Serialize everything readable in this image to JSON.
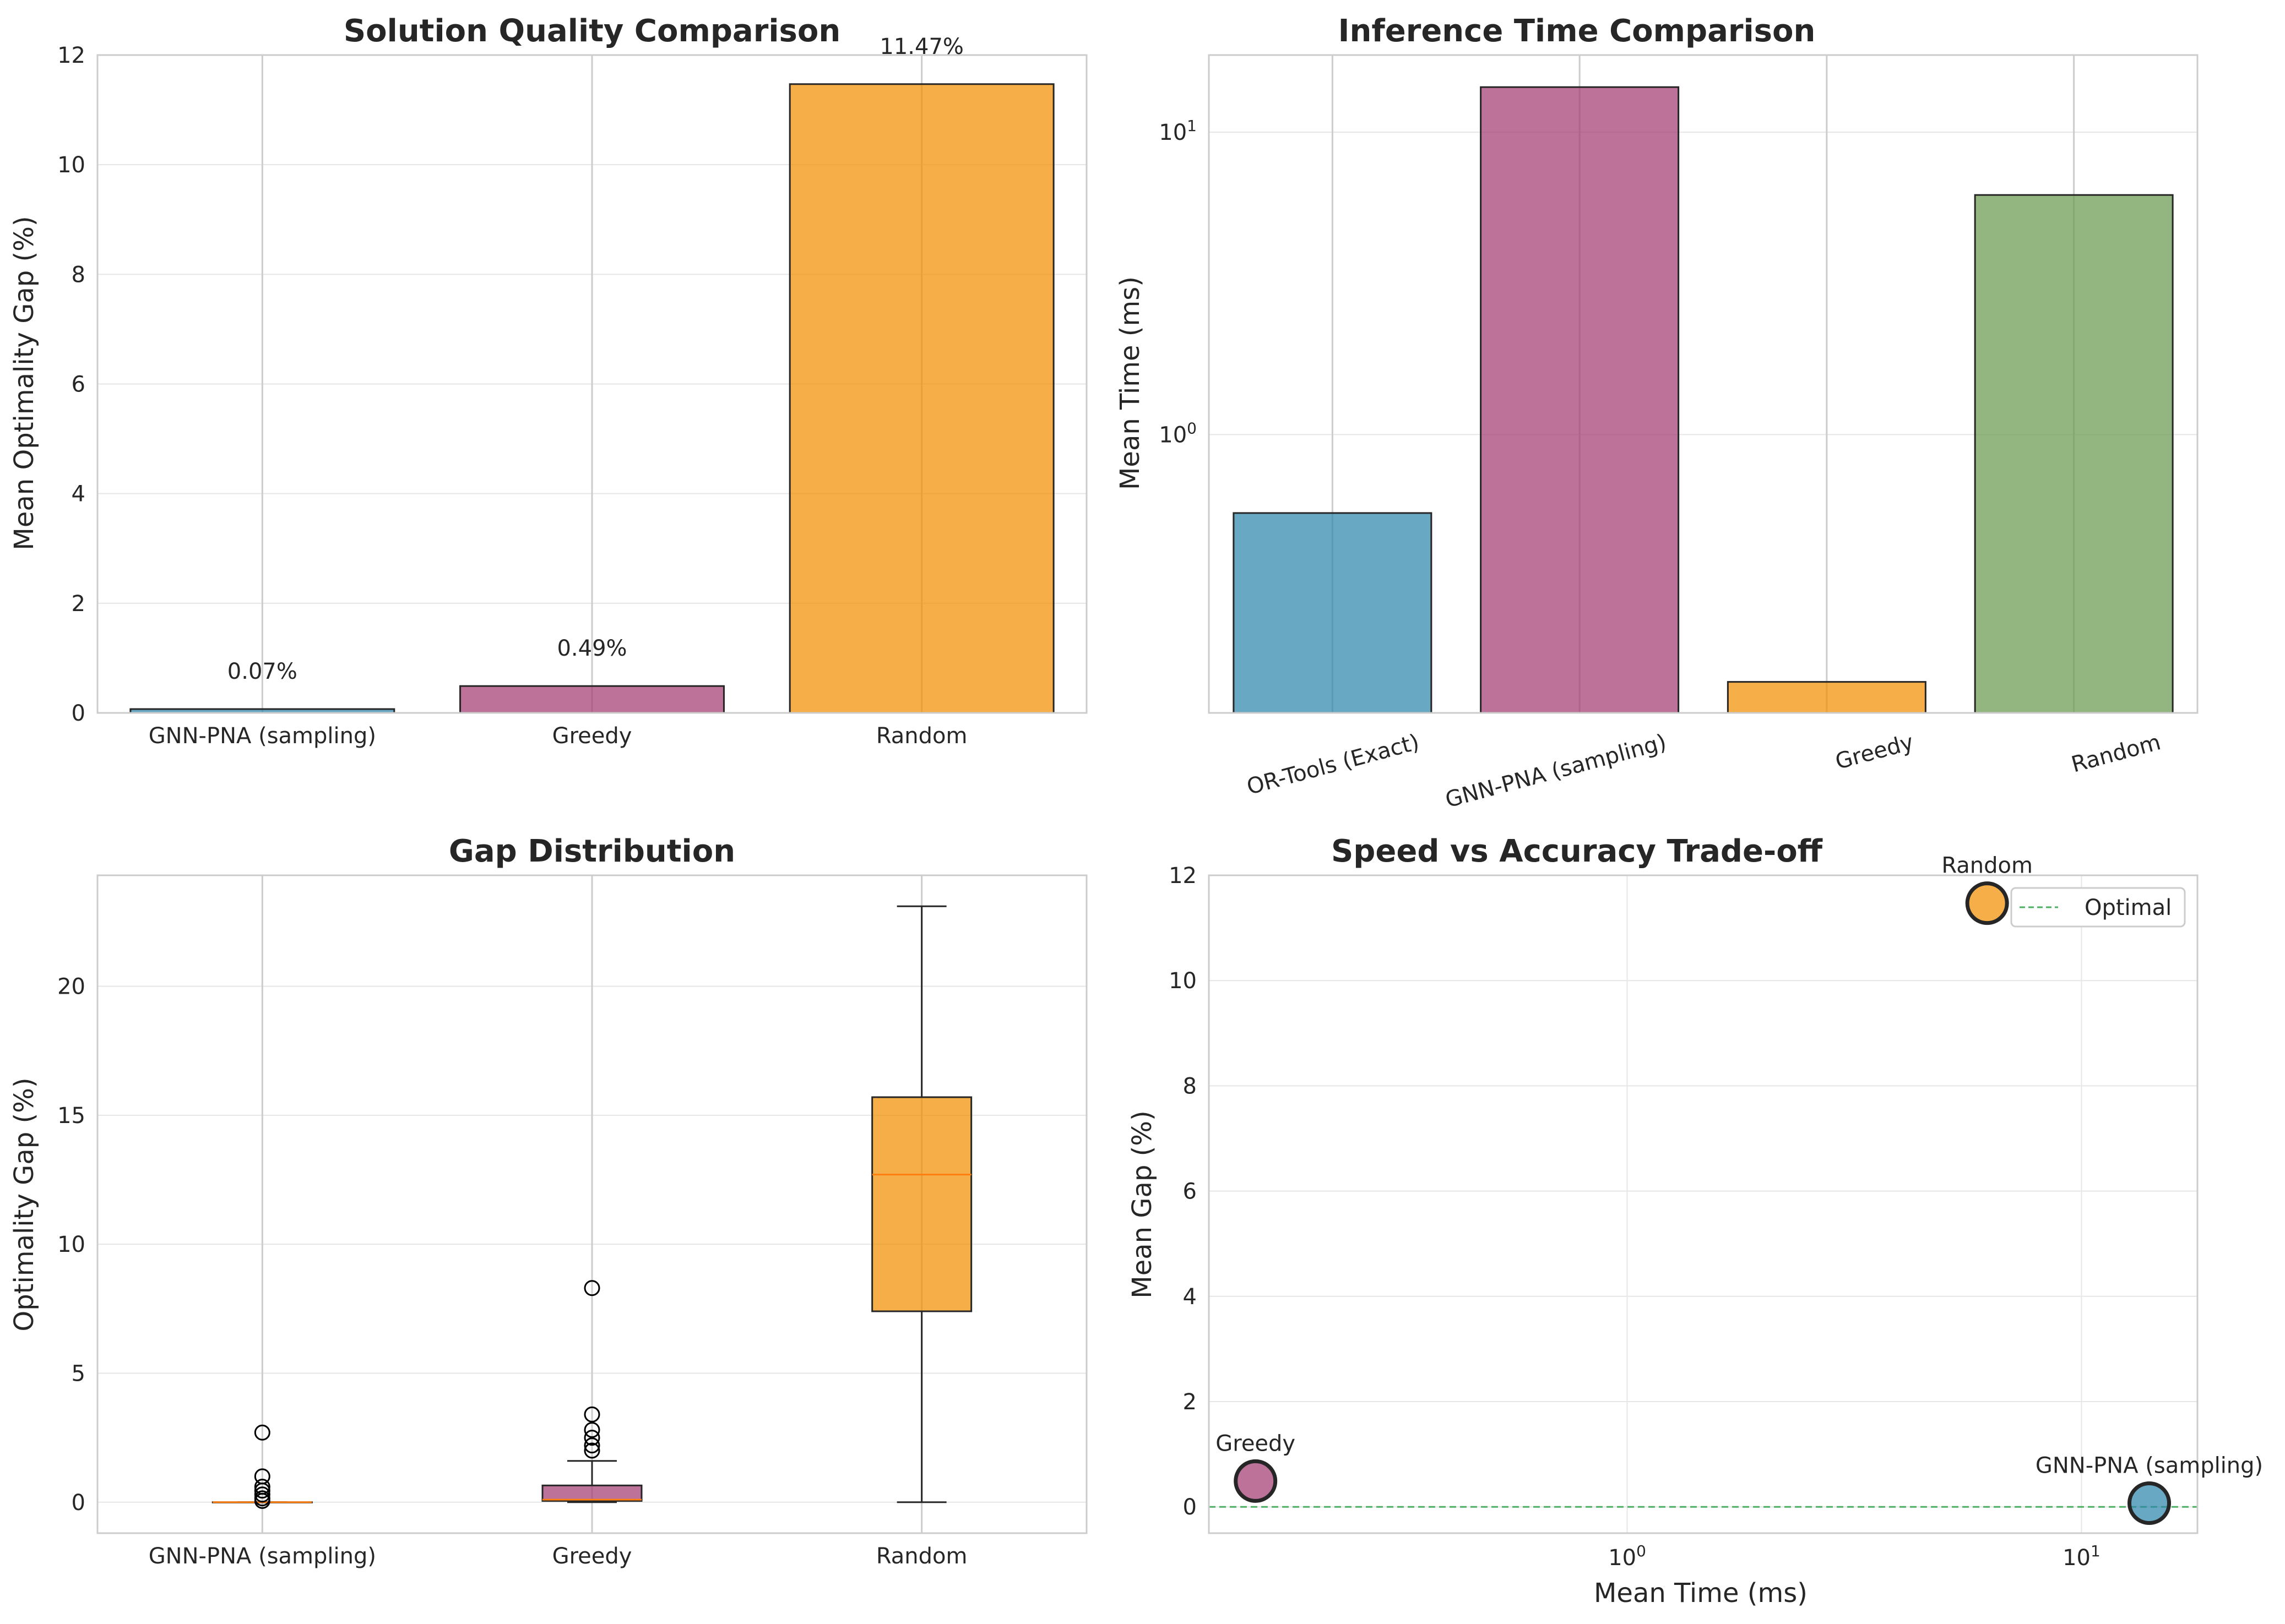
{
  "colors": {
    "blue": "#2E86AB",
    "purple": "#A23B72",
    "orange": "#F18F01",
    "green": "#6A994E",
    "median": "#ff7f0e",
    "optimal_line": "#4caf63",
    "edge": "#262626",
    "grid": "#e6e6e6",
    "spine": "#cccccc"
  },
  "chart_data": [
    {
      "type": "bar",
      "title": "Solution Quality Comparison",
      "xlabel": "",
      "ylabel": "Mean Optimality Gap (%)",
      "categories": [
        "GNN-PNA (sampling)",
        "Greedy",
        "Random"
      ],
      "values": [
        0.07,
        0.49,
        11.47
      ],
      "value_labels": [
        "0.07%",
        "0.49%",
        "11.47%"
      ],
      "colors": [
        "blue",
        "purple",
        "orange"
      ],
      "ylim": [
        0,
        12
      ],
      "yticks": [
        0,
        2,
        4,
        6,
        8,
        10,
        12
      ],
      "grid": true
    },
    {
      "type": "bar",
      "title": "Inference Time Comparison",
      "xlabel": "",
      "ylabel": "Mean Time (ms)",
      "yscale": "log",
      "categories": [
        "OR-Tools (Exact)",
        "GNN-PNA (sampling)",
        "Greedy",
        "Random"
      ],
      "values": [
        0.55,
        14.1,
        0.152,
        6.2
      ],
      "colors": [
        "blue",
        "purple",
        "orange",
        "green"
      ],
      "ylim": [
        0.12,
        18
      ],
      "yticks": [
        {
          "value": 1,
          "base": "10",
          "exp": "0"
        },
        {
          "value": 10,
          "base": "10",
          "exp": "1"
        }
      ],
      "xtick_rotation": 15,
      "grid": true
    },
    {
      "type": "box",
      "title": "Gap Distribution",
      "xlabel": "",
      "ylabel": "Optimality Gap (%)",
      "categories": [
        "GNN-PNA (sampling)",
        "Greedy",
        "Random"
      ],
      "colors": [
        "blue",
        "purple",
        "orange"
      ],
      "boxes": [
        {
          "whislo": 0,
          "q1": 0,
          "med": 0,
          "q3": 0,
          "whishi": 0,
          "fliers": [
            0.05,
            0.15,
            0.3,
            0.45,
            0.6,
            1.0,
            2.7
          ]
        },
        {
          "whislo": 0,
          "q1": 0.05,
          "med": 0.1,
          "q3": 0.65,
          "whishi": 1.6,
          "fliers": [
            2.0,
            2.2,
            2.5,
            2.8,
            3.4,
            8.3
          ]
        },
        {
          "whislo": 0,
          "q1": 7.4,
          "med": 12.7,
          "q3": 15.7,
          "whishi": 23.1,
          "fliers": []
        }
      ],
      "ylim": [
        -1.2,
        24.3
      ],
      "yticks": [
        0,
        5,
        10,
        15,
        20
      ],
      "grid": true
    },
    {
      "type": "scatter",
      "title": "Speed vs Accuracy Trade-off",
      "xlabel": "Mean Time (ms)",
      "ylabel": "Mean Gap (%)",
      "xscale": "log",
      "points": [
        {
          "label": "GNN-PNA (sampling)",
          "x": 14.1,
          "y": 0.07,
          "color": "blue"
        },
        {
          "label": "Greedy",
          "x": 0.152,
          "y": 0.49,
          "color": "purple"
        },
        {
          "label": "Random",
          "x": 6.2,
          "y": 11.47,
          "color": "orange"
        }
      ],
      "hline": {
        "y": 0,
        "label": "Optimal"
      },
      "xlim": [
        0.12,
        18
      ],
      "ylim": [
        -0.5,
        12
      ],
      "xticks": [
        {
          "value": 1,
          "base": "10",
          "exp": "0"
        },
        {
          "value": 10,
          "base": "10",
          "exp": "1"
        }
      ],
      "yticks": [
        0,
        2,
        4,
        6,
        8,
        10,
        12
      ],
      "legend": "top-right",
      "grid": true
    }
  ]
}
